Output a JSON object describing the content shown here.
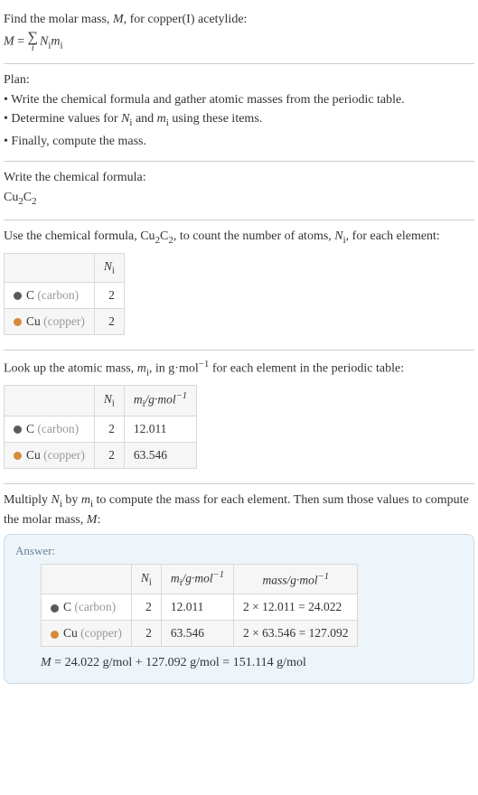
{
  "intro": {
    "line1_a": "Find the molar mass, ",
    "line1_m": "M",
    "line1_b": ", for copper(I) acetylide:",
    "m_eq": "M",
    "equals": " = ",
    "sigma": "∑",
    "sigma_sub": "i",
    "nm": "N",
    "nm_sub": "i",
    "mm": "m",
    "mm_sub": "i"
  },
  "plan": {
    "heading": "Plan:",
    "b1a": "• Write the chemical formula and gather atomic masses from the periodic table.",
    "b2a": "• Determine values for ",
    "b2_n": "N",
    "b2_ni": "i",
    "b2_mid": " and ",
    "b2_m": "m",
    "b2_mi": "i",
    "b2_end": " using these items.",
    "b3": "• Finally, compute the mass."
  },
  "chem": {
    "heading": "Write the chemical formula:",
    "cu": "Cu",
    "two_a": "2",
    "c": "C",
    "two_b": "2"
  },
  "count": {
    "t1": "Use the chemical formula, ",
    "cu": "Cu",
    "s1": "2",
    "c": "C",
    "s2": "2",
    "t2": ", to count the number of atoms, ",
    "n": "N",
    "ni": "i",
    "t3": ", for each element:",
    "hdr_n": "N",
    "hdr_ni": "i",
    "row1_sym": "C",
    "row1_name": " (carbon)",
    "row1_color": "#5a5a5a",
    "row1_val": "2",
    "row2_sym": "Cu",
    "row2_name": " (copper)",
    "row2_color": "#d68a3a",
    "row2_val": "2"
  },
  "masses": {
    "t1": "Look up the atomic mass, ",
    "m": "m",
    "mi": "i",
    "t2": ", in g·mol",
    "neg1": "−1",
    "t3": " for each element in the periodic table:",
    "hdr_n": "N",
    "hdr_ni": "i",
    "hdr_m": "m",
    "hdr_mi": "i",
    "hdr_unit": "/g·mol",
    "row1_sym": "C",
    "row1_name": " (carbon)",
    "row1_color": "#5a5a5a",
    "row1_n": "2",
    "row1_m": "12.011",
    "row2_sym": "Cu",
    "row2_name": " (copper)",
    "row2_color": "#d68a3a",
    "row2_n": "2",
    "row2_m": "63.546"
  },
  "multiply": {
    "t1": "Multiply ",
    "n": "N",
    "ni": "i",
    "t2": " by ",
    "m": "m",
    "mi": "i",
    "t3": " to compute the mass for each element. Then sum those values to compute the molar mass, ",
    "mM": "M",
    "t4": ":"
  },
  "answer": {
    "title": "Answer:",
    "hdr_n": "N",
    "hdr_ni": "i",
    "hdr_m": "m",
    "hdr_mi": "i",
    "hdr_unit": "/g·mol",
    "neg1": "−1",
    "hdr_mass": "mass/g·mol",
    "row1_sym": "C",
    "row1_name": " (carbon)",
    "row1_color": "#5a5a5a",
    "row1_n": "2",
    "row1_m": "12.011",
    "row1_calc": "2 × 12.011 = 24.022",
    "row2_sym": "Cu",
    "row2_name": " (copper)",
    "row2_color": "#d68a3a",
    "row2_n": "2",
    "row2_m": "63.546",
    "row2_calc": "2 × 63.546 = 127.092",
    "final_m": "M",
    "final_rest": " = 24.022 g/mol + 127.092 g/mol = 151.114 g/mol"
  }
}
